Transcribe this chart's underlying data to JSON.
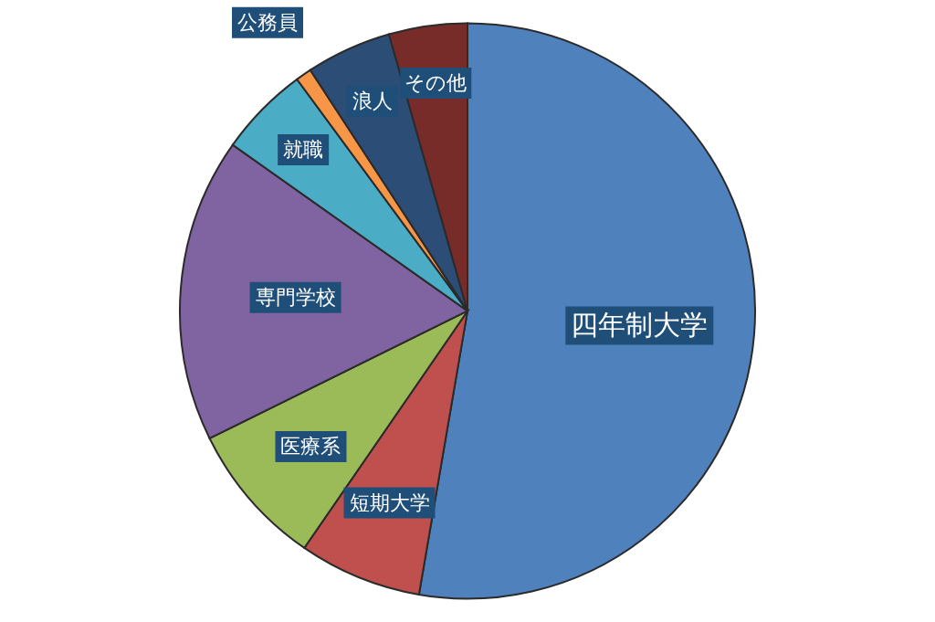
{
  "chart_data": {
    "type": "pie",
    "categories": [
      "四年制大学",
      "短期大学",
      "医療系",
      "専門学校",
      "就職",
      "公務員",
      "浪人",
      "その他"
    ],
    "values": [
      52.7,
      6.9,
      8.1,
      17.1,
      5.1,
      0.9,
      4.8,
      4.4
    ],
    "colors": [
      "#4f81bd",
      "#c0504d",
      "#9bbb59",
      "#8064a2",
      "#4bacc6",
      "#f79646",
      "#2c4d75",
      "#772c2a"
    ]
  }
}
